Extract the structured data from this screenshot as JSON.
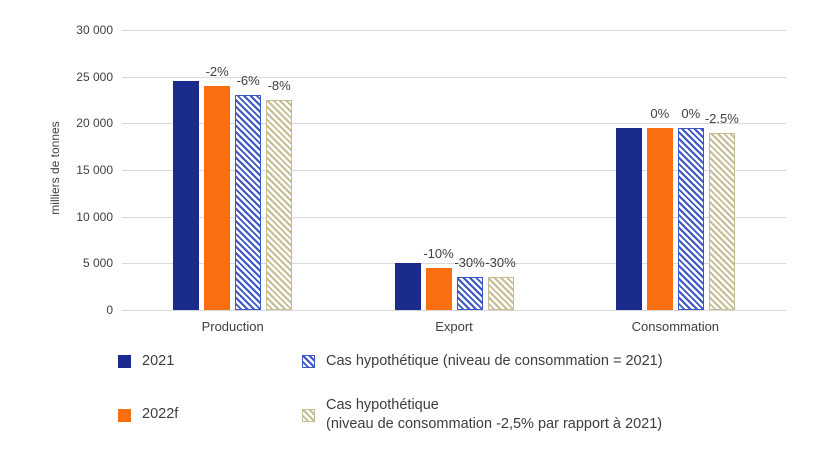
{
  "chart_data": {
    "type": "bar",
    "title": "",
    "xlabel": "",
    "ylabel": "milliers de tonnes",
    "ylim": [
      0,
      30000
    ],
    "ytick_step": 5000,
    "yticks": [
      "0",
      "5 000",
      "10 000",
      "15 000",
      "20 000",
      "25 000",
      "30 000"
    ],
    "categories": [
      "Production",
      "Export",
      "Consommation"
    ],
    "series": [
      {
        "name": "2021",
        "style": "solid-navy",
        "values": [
          24500,
          5000,
          19500
        ],
        "labels": [
          "",
          "",
          ""
        ]
      },
      {
        "name": "2022f",
        "style": "solid-orange",
        "values": [
          24000,
          4500,
          19500
        ],
        "labels": [
          "-2%",
          "-10%",
          "0%"
        ]
      },
      {
        "name": "Cas hypothétique (niveau de consommation = 2021)",
        "style": "hatch-blue",
        "values": [
          23000,
          3500,
          19500
        ],
        "labels": [
          "-6%",
          "-30%",
          "0%"
        ]
      },
      {
        "name": "Cas hypothétique (niveau de consommation -2,5% par rapport à 2021)",
        "style": "hatch-tan",
        "values": [
          22500,
          3500,
          19000
        ],
        "labels": [
          "-8%",
          "-30%",
          "-2.5%"
        ]
      }
    ],
    "grid": true,
    "legend_position": "bottom",
    "colors": {
      "navy": "#1a2b8d",
      "orange": "#f96e0e",
      "hatch_blue": "#3d56c5",
      "hatch_tan": "#c6bc94",
      "gridline": "#d9d9d9",
      "text": "#404040"
    }
  },
  "legend": {
    "items": [
      {
        "label": "2021",
        "style": "solid-navy"
      },
      {
        "label": "Cas hypothétique (niveau de consommation = 2021)",
        "style": "hatch-blue"
      },
      {
        "label": "2022f",
        "style": "solid-orange"
      },
      {
        "label": "Cas hypothétique\n(niveau de consommation -2,5% par rapport à 2021)",
        "style": "hatch-tan"
      }
    ]
  }
}
